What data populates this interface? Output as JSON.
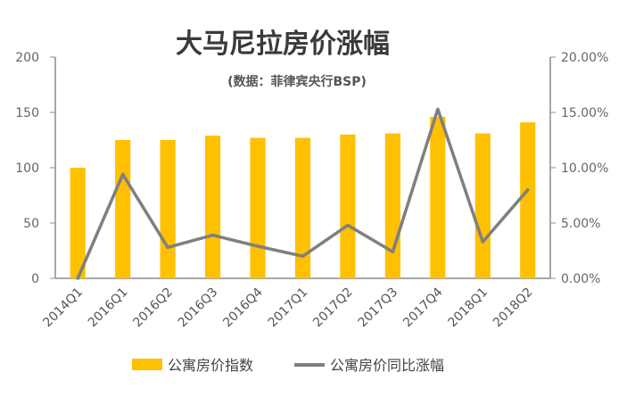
{
  "chart_data": {
    "type": "bar",
    "title": "大马尼拉房价涨幅",
    "subtitle": "(数据：菲律宾央行BSP)",
    "categories": [
      "2014Q1",
      "2016Q1",
      "2016Q2",
      "2016Q3",
      "2016Q4",
      "2017Q1",
      "2017Q2",
      "2017Q3",
      "2017Q4",
      "2018Q1",
      "2018Q2"
    ],
    "series": [
      {
        "name": "公寓房价指数",
        "type": "bar",
        "axis": "left",
        "color": "#FFC000",
        "values": [
          100,
          125,
          125,
          129,
          127,
          127,
          130,
          131,
          146,
          131,
          141
        ]
      },
      {
        "name": "公寓房价同比涨幅",
        "type": "line",
        "axis": "right",
        "color": "#7F7F7F",
        "values": [
          0.0,
          9.4,
          2.8,
          3.9,
          2.9,
          2.0,
          4.8,
          2.4,
          15.3,
          3.3,
          8.0
        ]
      }
    ],
    "y_left": {
      "min": 0,
      "max": 200,
      "ticks": [
        "0",
        "50",
        "100",
        "150",
        "200"
      ]
    },
    "y_right": {
      "min": 0,
      "max": 20,
      "ticks": [
        "0.00%",
        "5.00%",
        "10.00%",
        "15.00%",
        "20.00%"
      ]
    },
    "grid": false,
    "legend": "bottom"
  }
}
